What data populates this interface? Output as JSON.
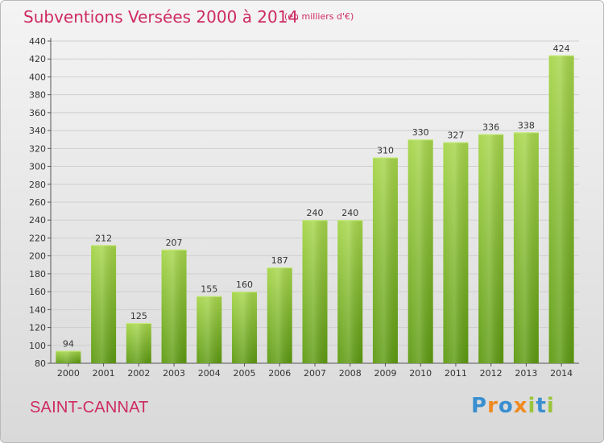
{
  "header": {
    "title": "Subventions Versées 2000 à 2014",
    "unit": "(en milliers d'€)"
  },
  "footer": {
    "commune": "SAINT-CANNAT",
    "brand": "Proxiti"
  },
  "colors": {
    "title": "#ce2a63",
    "bar_light": "#a6d64a",
    "bar_dark": "#5d9a11",
    "grid": "#cfcfcf",
    "brand_letters": [
      "#3a8fd0",
      "#ef8a1f",
      "#3a8fd0",
      "#ef8a1f",
      "#9ac43b",
      "#3a8fd0",
      "#9ac43b"
    ]
  },
  "chart_data": {
    "type": "bar",
    "title": "Subventions Versées 2000 à 2014",
    "subtitle": "(en milliers d'€)",
    "xlabel": "",
    "ylabel": "",
    "categories": [
      "2000",
      "2001",
      "2002",
      "2003",
      "2004",
      "2005",
      "2006",
      "2007",
      "2008",
      "2009",
      "2010",
      "2011",
      "2012",
      "2013",
      "2014"
    ],
    "values": [
      94,
      212,
      125,
      207,
      155,
      160,
      187,
      240,
      240,
      310,
      330,
      327,
      336,
      338,
      424
    ],
    "ylim": [
      80,
      440
    ],
    "yticks": [
      80,
      100,
      120,
      140,
      160,
      180,
      200,
      220,
      240,
      260,
      280,
      300,
      320,
      340,
      360,
      380,
      400,
      420,
      440
    ],
    "grid": true,
    "data_labels": true
  }
}
